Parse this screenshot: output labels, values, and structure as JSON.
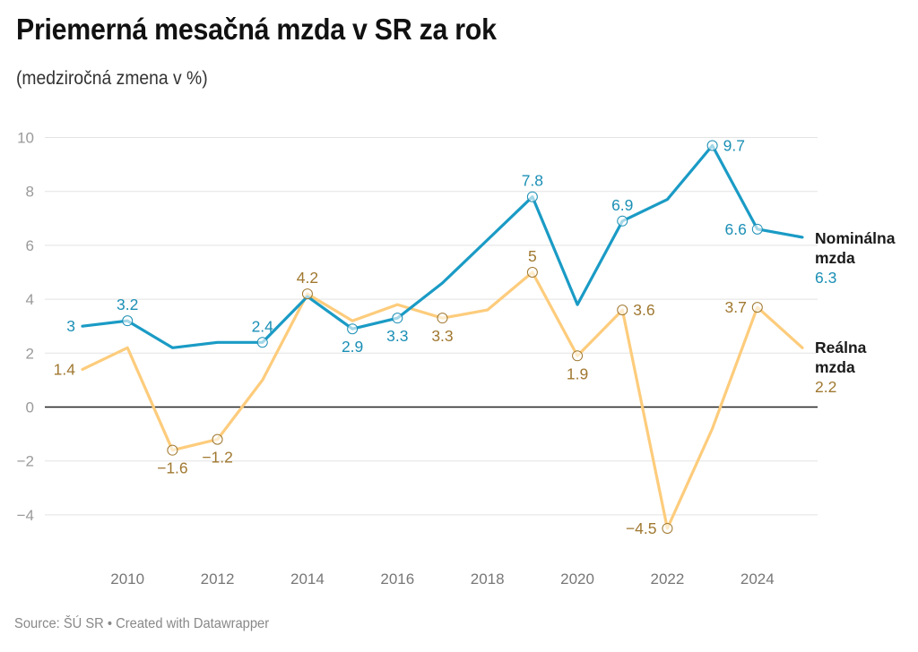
{
  "header": {
    "title": "Priemerná mesačná mzda v SR za rok",
    "subtitle": "(medziročná zmena v %)"
  },
  "footer": {
    "source": "Source: ŠÚ SR • Created with Datawrapper"
  },
  "chart_data": {
    "type": "line",
    "title": "Priemerná mesačná mzda v SR za rok",
    "subtitle": "(medziročná zmena v %)",
    "xlabel": "",
    "ylabel": "",
    "x": [
      2009,
      2010,
      2011,
      2012,
      2013,
      2014,
      2015,
      2016,
      2017,
      2018,
      2019,
      2020,
      2021,
      2022,
      2023,
      2024,
      2025
    ],
    "xlim": [
      2009,
      2025
    ],
    "ylim": [
      -5.5,
      10
    ],
    "yticks": [
      -4,
      -2,
      0,
      2,
      4,
      6,
      8,
      10
    ],
    "ytick_labels": [
      "−4",
      "−2",
      "0",
      "2",
      "4",
      "6",
      "8",
      "10"
    ],
    "xticks": [
      2010,
      2012,
      2014,
      2016,
      2018,
      2020,
      2022,
      2024
    ],
    "xtick_labels": [
      "2010",
      "2012",
      "2014",
      "2016",
      "2018",
      "2020",
      "2022",
      "2024"
    ],
    "grid": true,
    "zero_line": true,
    "legend": "direct-labels-right",
    "series": [
      {
        "name": "Nominálna mzda",
        "name_lines": [
          "Nominálna",
          "mzda"
        ],
        "end_value_label": "6.3",
        "color": "#1a9bc5",
        "label_color": "#1b8fb5",
        "values": [
          3.0,
          3.2,
          2.2,
          2.4,
          2.4,
          4.1,
          2.9,
          3.3,
          4.6,
          6.2,
          7.8,
          3.8,
          6.9,
          7.7,
          9.7,
          6.6,
          6.3
        ],
        "annotations": [
          {
            "year": 2009,
            "text": "3",
            "pos": "left",
            "marker": false
          },
          {
            "year": 2010,
            "text": "3.2",
            "pos": "above",
            "marker": true
          },
          {
            "year": 2013,
            "text": "2.4",
            "pos": "above",
            "marker": true
          },
          {
            "year": 2015,
            "text": "2.9",
            "pos": "below",
            "marker": true
          },
          {
            "year": 2016,
            "text": "3.3",
            "pos": "below",
            "marker": true
          },
          {
            "year": 2019,
            "text": "7.8",
            "pos": "above",
            "marker": true
          },
          {
            "year": 2021,
            "text": "6.9",
            "pos": "above",
            "marker": true
          },
          {
            "year": 2023,
            "text": "9.7",
            "pos": "right",
            "marker": true
          },
          {
            "year": 2024,
            "text": "6.6",
            "pos": "left",
            "marker": true
          }
        ]
      },
      {
        "name": "Reálna mzda",
        "name_lines": [
          "Reálna",
          "mzda"
        ],
        "end_value_label": "2.2",
        "color": "#fdcc7c",
        "label_color": "#a07830",
        "values": [
          1.4,
          2.2,
          -1.6,
          -1.2,
          1.0,
          4.2,
          3.2,
          3.8,
          3.3,
          3.6,
          5.0,
          1.9,
          3.6,
          -4.5,
          -0.8,
          3.7,
          2.2
        ],
        "annotations": [
          {
            "year": 2009,
            "text": "1.4",
            "pos": "left",
            "marker": false
          },
          {
            "year": 2011,
            "text": "−1.6",
            "pos": "below",
            "marker": true
          },
          {
            "year": 2012,
            "text": "−1.2",
            "pos": "below",
            "marker": true
          },
          {
            "year": 2014,
            "text": "4.2",
            "pos": "above",
            "marker": true
          },
          {
            "year": 2017,
            "text": "3.3",
            "pos": "below",
            "marker": true
          },
          {
            "year": 2019,
            "text": "5",
            "pos": "above",
            "marker": true
          },
          {
            "year": 2020,
            "text": "1.9",
            "pos": "below",
            "marker": true
          },
          {
            "year": 2021,
            "text": "3.6",
            "pos": "right",
            "marker": true
          },
          {
            "year": 2022,
            "text": "−4.5",
            "pos": "left",
            "marker": true
          },
          {
            "year": 2024,
            "text": "3.7",
            "pos": "left",
            "marker": true
          }
        ]
      }
    ]
  }
}
